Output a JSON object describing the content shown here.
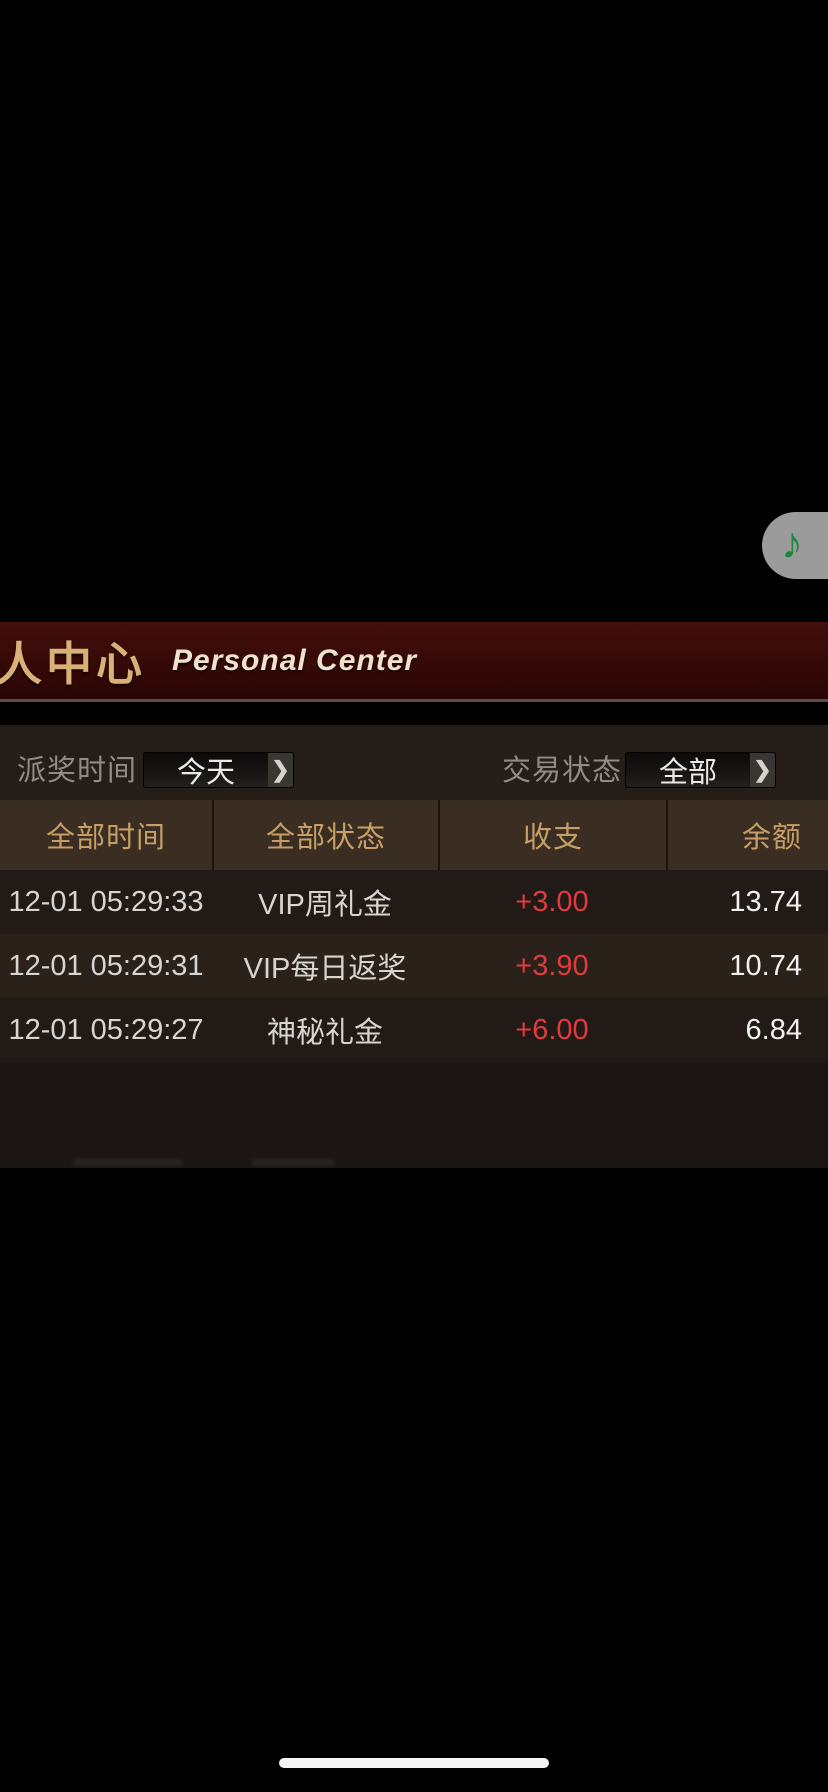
{
  "floating": {
    "music_icon": "♪"
  },
  "banner": {
    "title_cn": "人中心",
    "title_en": "Personal Center"
  },
  "filters": {
    "time": {
      "label": "派奖时间",
      "value": "今天",
      "chevron": "❯"
    },
    "status": {
      "label": "交易状态",
      "value": "全部",
      "chevron": "❯"
    }
  },
  "table": {
    "columns": [
      "全部时间",
      "全部状态",
      "收支",
      "余额"
    ],
    "rows": [
      {
        "time": "12-01 05:29:33",
        "type": "VIP周礼金",
        "amount": "+3.00",
        "balance": "13.74"
      },
      {
        "time": "12-01 05:29:31",
        "type": "VIP每日返奖",
        "amount": "+3.90",
        "balance": "10.74"
      },
      {
        "time": "12-01 05:29:27",
        "type": "神秘礼金",
        "amount": "+6.00",
        "balance": "6.84"
      }
    ]
  },
  "colors": {
    "banner_bg": "#380a08",
    "gold_text": "#c79f66",
    "amount_red": "#e23b3e",
    "note_green": "#1d8a3b",
    "panel_bg": "#241d18"
  }
}
